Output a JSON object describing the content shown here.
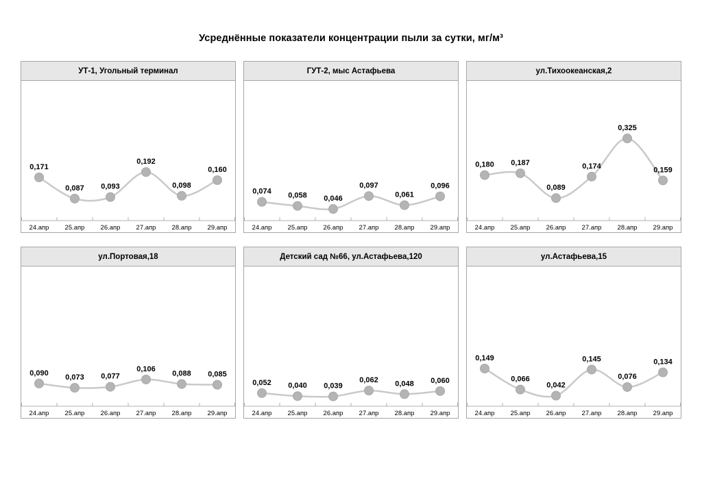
{
  "page_title": "Усреднённые показатели концентрации пыли за сутки, мг/м³",
  "colors": {
    "header_bg": "#e7e7e7",
    "panel_border": "#a6a6a6",
    "series_line": "#c9c9c9",
    "marker_fill": "#b4b4b4",
    "marker_border": "#a9a9a9",
    "axis_line": "#b0b0b0",
    "text": "#000000"
  },
  "chart_data": [
    {
      "type": "line",
      "title": "УТ-1, Угольный терминал",
      "categories": [
        "24.апр",
        "25.апр",
        "26.апр",
        "27.апр",
        "28.апр",
        "29.апр"
      ],
      "values": [
        0.171,
        0.087,
        0.093,
        0.192,
        0.098,
        0.16
      ],
      "value_labels": [
        "0,171",
        "0,087",
        "0,093",
        "0,192",
        "0,098",
        "0,160"
      ],
      "ylim": [
        0,
        0.55
      ],
      "grid": false,
      "legend": "none"
    },
    {
      "type": "line",
      "title": "ГУТ-2, мыс Астафьева",
      "categories": [
        "24.апр",
        "25.апр",
        "26.апр",
        "27.апр",
        "28.апр",
        "29.апр"
      ],
      "values": [
        0.074,
        0.058,
        0.046,
        0.097,
        0.061,
        0.096
      ],
      "value_labels": [
        "0,074",
        "0,058",
        "0,046",
        "0,097",
        "0,061",
        "0,096"
      ],
      "ylim": [
        0,
        0.55
      ],
      "grid": false,
      "legend": "none"
    },
    {
      "type": "line",
      "title": "ул.Тихоокеанская,2",
      "categories": [
        "24.апр",
        "25.апр",
        "26.апр",
        "27.апр",
        "28.апр",
        "29.апр"
      ],
      "values": [
        0.18,
        0.187,
        0.089,
        0.174,
        0.325,
        0.159
      ],
      "value_labels": [
        "0,180",
        "0,187",
        "0,089",
        "0,174",
        "0,325",
        "0,159"
      ],
      "ylim": [
        0,
        0.55
      ],
      "grid": false,
      "legend": "none"
    },
    {
      "type": "line",
      "title": "ул.Портовая,18",
      "categories": [
        "24.апр",
        "25.апр",
        "26.апр",
        "27.апр",
        "28.апр",
        "29.апр"
      ],
      "values": [
        0.09,
        0.073,
        0.077,
        0.106,
        0.088,
        0.085
      ],
      "value_labels": [
        "0,090",
        "0,073",
        "0,077",
        "0,106",
        "0,088",
        "0,085"
      ],
      "ylim": [
        0,
        0.55
      ],
      "grid": false,
      "legend": "none"
    },
    {
      "type": "line",
      "title": "Детский сад №66, ул.Астафьева,120",
      "categories": [
        "24.апр",
        "25.апр",
        "26.апр",
        "27.апр",
        "28.апр",
        "29.апр"
      ],
      "values": [
        0.052,
        0.04,
        0.039,
        0.062,
        0.048,
        0.06
      ],
      "value_labels": [
        "0,052",
        "0,040",
        "0,039",
        "0,062",
        "0,048",
        "0,060"
      ],
      "ylim": [
        0,
        0.55
      ],
      "grid": false,
      "legend": "none"
    },
    {
      "type": "line",
      "title": "ул.Астафьева,15",
      "categories": [
        "24.апр",
        "25.апр",
        "26.апр",
        "27.апр",
        "28.апр",
        "29.апр"
      ],
      "values": [
        0.149,
        0.066,
        0.042,
        0.145,
        0.076,
        0.134
      ],
      "value_labels": [
        "0,149",
        "0,066",
        "0,042",
        "0,145",
        "0,076",
        "0,134"
      ],
      "ylim": [
        0,
        0.55
      ],
      "grid": false,
      "legend": "none"
    }
  ]
}
